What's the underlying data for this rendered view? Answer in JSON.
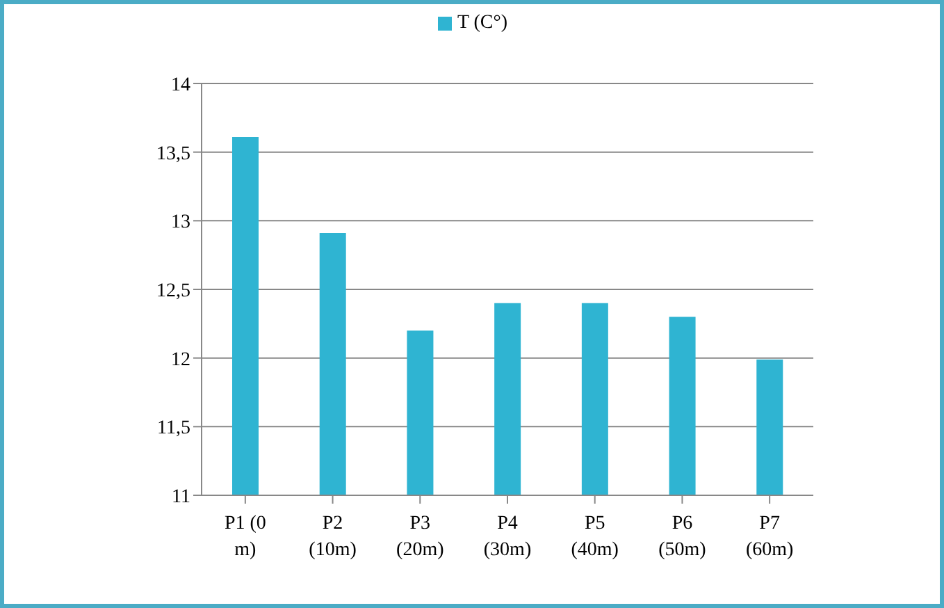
{
  "chart_data": {
    "type": "bar",
    "categories": [
      "P1 (0 m)",
      "P2 (10m)",
      "P3 (20m)",
      "P4 (30m)",
      "P5 (40m)",
      "P6 (50m)",
      "P7 (60m)"
    ],
    "series": [
      {
        "name": "T (C°)",
        "color": "#2fb4d2",
        "values": [
          13.61,
          12.91,
          12.2,
          12.4,
          12.4,
          12.3,
          11.99
        ]
      }
    ],
    "ylim": [
      11,
      14
    ],
    "yticks": [
      11,
      {
        "value": 11.5,
        "label": "11,5"
      },
      12,
      {
        "value": 12.5,
        "label": "12,5"
      },
      13,
      {
        "value": 13.5,
        "label": "13,5"
      },
      14
    ],
    "grid": "y",
    "legend": "top"
  }
}
